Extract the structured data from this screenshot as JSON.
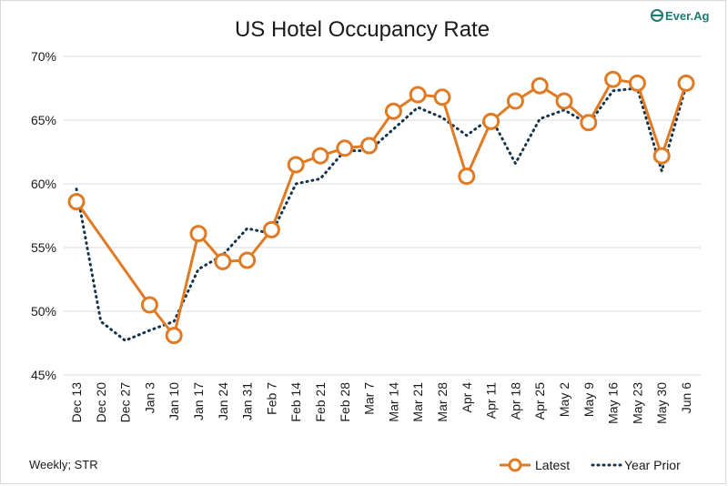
{
  "chart_data": {
    "type": "line",
    "title": "US Hotel Occupancy Rate",
    "categories": [
      "Dec 13",
      "Dec 20",
      "Dec 27",
      "Jan 3",
      "Jan 10",
      "Jan 17",
      "Jan 24",
      "Jan 31",
      "Feb 7",
      "Feb 14",
      "Feb 21",
      "Feb 28",
      "Mar 7",
      "Mar 14",
      "Mar 21",
      "Mar 28",
      "Apr 4",
      "Apr 11",
      "Apr 18",
      "Apr 25",
      "May 2",
      "May 9",
      "May 16",
      "May 23",
      "May 30",
      "Jun 6"
    ],
    "series": [
      {
        "name": "Latest",
        "color": "#e07b24",
        "style": "solid-with-circle-markers",
        "values": [
          58.6,
          null,
          null,
          50.5,
          48.1,
          56.1,
          53.9,
          54.0,
          56.4,
          61.5,
          62.2,
          62.8,
          63.0,
          65.7,
          67.0,
          66.8,
          60.6,
          64.9,
          66.5,
          67.7,
          66.5,
          64.8,
          68.2,
          67.9,
          62.2,
          67.9
        ]
      },
      {
        "name": "Year Prior",
        "color": "#15344a",
        "style": "dotted",
        "values": [
          59.6,
          49.2,
          47.7,
          48.5,
          49.2,
          53.3,
          54.4,
          56.5,
          56.1,
          60.0,
          60.4,
          62.6,
          62.6,
          64.3,
          66.0,
          65.2,
          63.8,
          65.2,
          61.6,
          65.1,
          65.8,
          64.7,
          67.3,
          67.5,
          61.0,
          67.7
        ]
      }
    ],
    "y_ticks": [
      "45%",
      "50%",
      "55%",
      "60%",
      "65%",
      "70%"
    ],
    "ylim": [
      45,
      70
    ],
    "grid": "horizontal",
    "legend_position": "bottom-right"
  },
  "footer": {
    "source": "Weekly; STR"
  },
  "brand": {
    "name": "Ever.Ag",
    "color": "#1e7b72"
  }
}
